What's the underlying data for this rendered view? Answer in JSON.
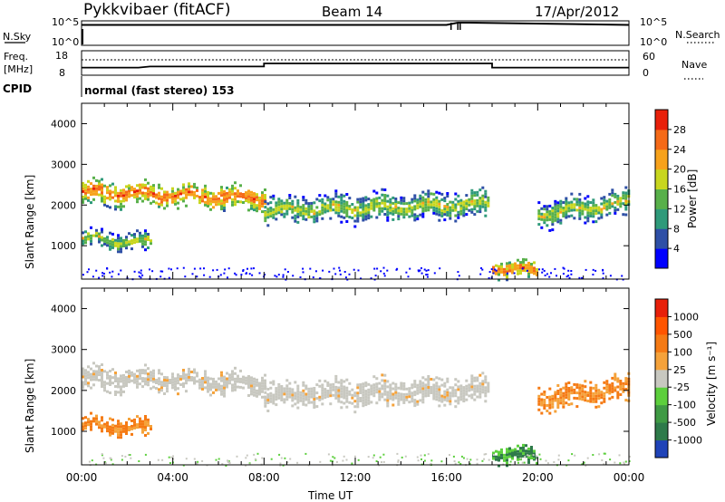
{
  "header": {
    "station": "Pykkvibaer (fitACF)",
    "beam": "Beam 14",
    "date": "17/Apr/2012"
  },
  "ts_panel": {
    "left_label": "N.Sky",
    "left_ticks": [
      "10^5",
      "10^0"
    ],
    "right_label": "N.Search",
    "right_ticks": [
      "10^5",
      "10^0"
    ]
  },
  "freq_panel": {
    "label_line1": "Freq.",
    "label_line2": "[MHz]",
    "left_ticks": [
      "18",
      "8"
    ],
    "right_label": "Nave",
    "right_ticks": [
      "60",
      "0"
    ]
  },
  "cpid": {
    "label": "CPID",
    "text": "normal (fast stereo) 153"
  },
  "chart_data": [
    {
      "type": "line",
      "panel": "sky-noise",
      "series": [
        {
          "name": "N.Sky",
          "x": [
            "00:00",
            "16:00",
            "16:30",
            "17:00",
            "24:00"
          ],
          "y": [
            30000,
            30000,
            100000,
            100000,
            30000
          ]
        }
      ]
    },
    {
      "type": "line",
      "panel": "frequency",
      "x": [
        "00:00",
        "02:30",
        "03:00",
        "08:00",
        "08:00",
        "18:00",
        "18:00",
        "24:00"
      ],
      "series": [
        {
          "name": "Freq.",
          "values": [
            10.8,
            10.8,
            11.3,
            11.3,
            12.8,
            12.8,
            10.8,
            10.8
          ]
        }
      ]
    },
    {
      "type": "heatmap",
      "panel": "power",
      "xlabel": "",
      "ylabel": "Slant Range [km]",
      "xlim": [
        0,
        24
      ],
      "ylim": [
        180,
        4500
      ],
      "yticks": [
        "1000",
        "2000",
        "3000",
        "4000"
      ],
      "colorbar": {
        "label": "Power [dB]",
        "ticks": [
          "4",
          "8",
          "12",
          "16",
          "20",
          "24",
          "28"
        ],
        "colors": [
          "#0000ff",
          "#2e4fa6",
          "#2f9a7a",
          "#58b04a",
          "#c8d61e",
          "#f7a21c",
          "#f56a18",
          "#e8200a"
        ]
      },
      "echo_bands": [
        {
          "t": [
            0.0,
            8.0
          ],
          "r_center": [
            2350,
            2200
          ],
          "width": 320,
          "level": "high"
        },
        {
          "t": [
            0.0,
            3.0
          ],
          "r_center": [
            1200,
            1100
          ],
          "width": 250,
          "level": "mid"
        },
        {
          "t": [
            8.0,
            17.8
          ],
          "r_center": [
            1900,
            2050
          ],
          "width": 380,
          "level": "mid"
        },
        {
          "t": [
            18.0,
            20.0
          ],
          "r_center": [
            500,
            400
          ],
          "width": 220,
          "level": "high"
        },
        {
          "t": [
            20.0,
            24.0
          ],
          "r_center": [
            1800,
            2100
          ],
          "width": 350,
          "level": "mid"
        }
      ]
    },
    {
      "type": "heatmap",
      "panel": "velocity",
      "xlabel": "Time UT",
      "ylabel": "Slant Range [km]",
      "xlim": [
        0,
        24
      ],
      "ylim": [
        180,
        4500
      ],
      "xticks": [
        "00:00",
        "04:00",
        "08:00",
        "12:00",
        "16:00",
        "20:00",
        "00:00"
      ],
      "yticks": [
        "1000",
        "2000",
        "3000",
        "4000"
      ],
      "colorbar": {
        "label": "Velocity [m s⁻¹]",
        "ticks": [
          "1000",
          "500",
          "100",
          "25",
          "-25",
          "-100",
          "-500",
          "-1000"
        ],
        "colors": [
          "#1f43b8",
          "#2e7a4a",
          "#3f9a44",
          "#5ccf3c",
          "#c8c8c0",
          "#f5a23a",
          "#f57a14",
          "#ff5500",
          "#e8200a"
        ]
      },
      "echo_bands": [
        {
          "t": [
            0.0,
            8.0
          ],
          "r_center": [
            2350,
            2200
          ],
          "width": 320,
          "level": "gray"
        },
        {
          "t": [
            0.0,
            3.0
          ],
          "r_center": [
            1200,
            1100
          ],
          "width": 250,
          "level": "orange"
        },
        {
          "t": [
            8.0,
            17.8
          ],
          "r_center": [
            1900,
            2050
          ],
          "width": 380,
          "level": "gray"
        },
        {
          "t": [
            18.0,
            20.0
          ],
          "r_center": [
            500,
            400
          ],
          "width": 220,
          "level": "green"
        },
        {
          "t": [
            20.0,
            24.0
          ],
          "r_center": [
            1800,
            2100
          ],
          "width": 350,
          "level": "orange"
        }
      ]
    }
  ]
}
